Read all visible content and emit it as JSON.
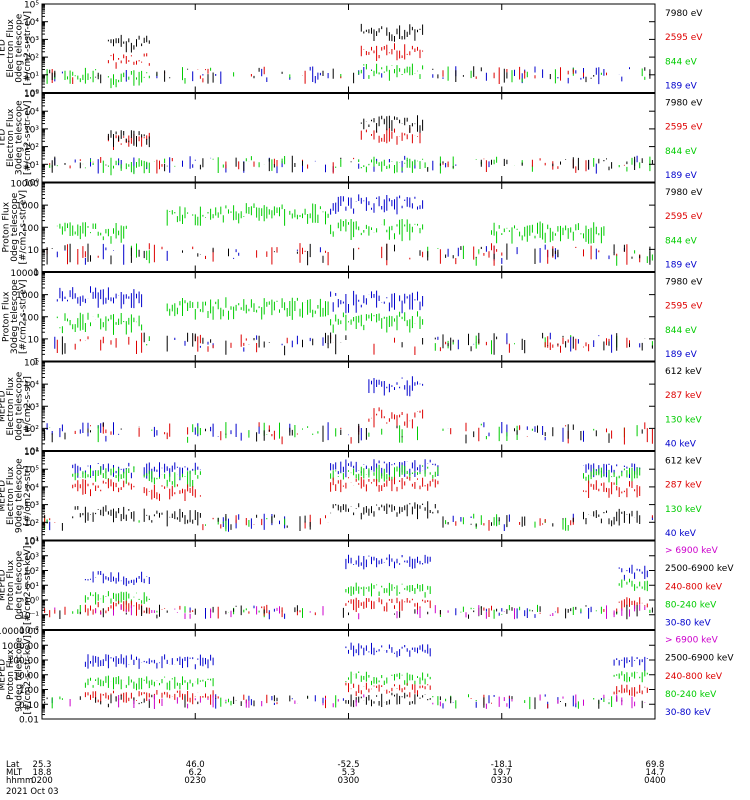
{
  "chart_data": [
    {
      "type": "line",
      "ylabel": [
        "TED",
        "Electron Flux",
        "0deg telescope",
        "[#/cm2-s-str-eV]"
      ],
      "y_scale": "log",
      "ylim": [
        1,
        100000
      ],
      "yticks": [
        "10⁰",
        "10¹",
        "10²",
        "10³",
        "10⁴",
        "10⁵"
      ],
      "legend": [
        {
          "label": "7980 eV",
          "color": "#000000"
        },
        {
          "label": "2595 eV",
          "color": "#dd0000"
        },
        {
          "label": "844 eV",
          "color": "#00cc00"
        },
        {
          "label": "189 eV",
          "color": "#0000cc"
        }
      ],
      "bursts": [
        {
          "x": [
            9,
            15
          ],
          "v": [
            600,
            70,
            6,
            0
          ],
          "color": "#dd0000"
        },
        {
          "x": [
            44,
            53
          ],
          "v": [
            2500,
            200,
            15,
            0
          ],
          "color": "#dd0000"
        },
        {
          "x": [
            3,
            8
          ],
          "v": [
            0,
            0,
            8,
            0
          ],
          "color": "#000000"
        }
      ]
    },
    {
      "type": "line",
      "ylabel": [
        "TED",
        "Electron Flux",
        "30deg telescope",
        "[#/cm2-s-str-eV]"
      ],
      "y_scale": "log",
      "ylim": [
        1,
        100000
      ],
      "yticks": [
        "10⁰",
        "10¹",
        "10²",
        "10³",
        "10⁴",
        "10⁵"
      ],
      "legend": [
        {
          "label": "7980 eV",
          "color": "#000000"
        },
        {
          "label": "2595 eV",
          "color": "#dd0000"
        },
        {
          "label": "844 eV",
          "color": "#00cc00"
        },
        {
          "label": "189 eV",
          "color": "#0000cc"
        }
      ],
      "bursts": [
        {
          "x": [
            9,
            15
          ],
          "v": [
            300,
            200,
            8,
            0
          ],
          "color": "#dd0000"
        },
        {
          "x": [
            44,
            53
          ],
          "v": [
            2000,
            400,
            10,
            0
          ],
          "color": "#dd0000"
        }
      ]
    },
    {
      "type": "line",
      "ylabel": [
        "Proton Flux",
        "0deg telescope",
        "[#/cm2-s-str-eV]"
      ],
      "y_scale": "log",
      "ylim": [
        1,
        10000
      ],
      "yticks": [
        "1",
        "10",
        "100",
        "1000",
        "10000"
      ],
      "legend": [
        {
          "label": "7980 eV",
          "color": "#000000"
        },
        {
          "label": "2595 eV",
          "color": "#dd0000"
        },
        {
          "label": "844 eV",
          "color": "#00cc00"
        },
        {
          "label": "189 eV",
          "color": "#0000cc"
        }
      ],
      "bursts": [
        {
          "x": [
            2,
            12
          ],
          "v": [
            0,
            0,
            60,
            0
          ],
          "color": "#00cc00"
        },
        {
          "x": [
            17,
            40
          ],
          "v": [
            0,
            0,
            400,
            0
          ],
          "color": "#00cc00"
        },
        {
          "x": [
            40,
            53
          ],
          "v": [
            0,
            0,
            80,
            1000
          ],
          "color": "#00cc00"
        },
        {
          "x": [
            62,
            78
          ],
          "v": [
            0,
            0,
            60,
            0
          ],
          "color": "#00cc00"
        }
      ]
    },
    {
      "type": "line",
      "ylabel": [
        "Proton Flux",
        "30deg telescope",
        "[#/cm2-s-str-eV]"
      ],
      "y_scale": "log",
      "ylim": [
        1,
        10000
      ],
      "yticks": [
        "1",
        "10",
        "100",
        "1000",
        "10000"
      ],
      "legend": [
        {
          "label": "7980 eV",
          "color": "#000000"
        },
        {
          "label": "2595 eV",
          "color": "#dd0000"
        },
        {
          "label": "844 eV",
          "color": "#00cc00"
        },
        {
          "label": "189 eV",
          "color": "#0000cc"
        }
      ],
      "bursts": [
        {
          "x": [
            2,
            14
          ],
          "v": [
            0,
            0,
            50,
            800
          ],
          "color": "#00cc00"
        },
        {
          "x": [
            17,
            40
          ],
          "v": [
            0,
            0,
            250,
            0
          ],
          "color": "#00cc00"
        },
        {
          "x": [
            40,
            53
          ],
          "v": [
            0,
            0,
            60,
            500
          ],
          "color": "#00cc00"
        }
      ]
    },
    {
      "type": "line",
      "ylabel": [
        "MEPED",
        "Electron Flux",
        "0deg telescope",
        "[#/cm2-s-str]"
      ],
      "y_scale": "log",
      "ylim": [
        10,
        100000
      ],
      "yticks": [
        "10¹",
        "10²",
        "10³",
        "10⁴",
        "10⁵"
      ],
      "legend": [
        {
          "label": "612 keV",
          "color": "#000000"
        },
        {
          "label": "287 keV",
          "color": "#dd0000"
        },
        {
          "label": "130 keV",
          "color": "#00cc00"
        },
        {
          "label": "40 keV",
          "color": "#0000cc"
        }
      ],
      "bursts": [
        {
          "x": [
            45,
            53
          ],
          "v": [
            0,
            300,
            0,
            8000
          ],
          "color": "#0000cc"
        }
      ]
    },
    {
      "type": "line",
      "ylabel": [
        "MEPED",
        "Electron Flux",
        "90deg telescope",
        "[#/cm2-s-str]"
      ],
      "y_scale": "log",
      "ylim": [
        10,
        1000000
      ],
      "yticks": [
        "10¹",
        "10²",
        "10³",
        "10⁴",
        "10⁵",
        "10⁶"
      ],
      "legend": [
        {
          "label": "612 keV",
          "color": "#000000"
        },
        {
          "label": "287 keV",
          "color": "#dd0000"
        },
        {
          "label": "130 keV",
          "color": "#00cc00"
        },
        {
          "label": "40 keV",
          "color": "#0000cc"
        }
      ],
      "bursts": [
        {
          "x": [
            4,
            13
          ],
          "v": [
            300,
            10000,
            50000,
            100000
          ],
          "color": "#0000cc"
        },
        {
          "x": [
            14,
            22
          ],
          "v": [
            200,
            5000,
            30000,
            80000
          ],
          "color": "#0000cc"
        },
        {
          "x": [
            40,
            55
          ],
          "v": [
            500,
            15000,
            60000,
            120000
          ],
          "color": "#0000cc"
        },
        {
          "x": [
            75,
            83
          ],
          "v": [
            200,
            8000,
            40000,
            100000
          ],
          "color": "#0000cc"
        }
      ]
    },
    {
      "type": "line",
      "ylabel": [
        "MEPED",
        "Proton Flux",
        "0deg telescope",
        "[#/cm2-s-str-keV]"
      ],
      "y_scale": "log",
      "ylim": [
        0.01,
        10000
      ],
      "yticks": [
        "10⁻²",
        "10⁻¹",
        "10⁰",
        "10¹",
        "10²",
        "10³",
        "10⁴"
      ],
      "legend": [
        {
          "label": "> 6900 keV",
          "color": "#cc00cc"
        },
        {
          "label": "2500-6900 keV",
          "color": "#000000"
        },
        {
          "label": "240-800 keV",
          "color": "#dd0000"
        },
        {
          "label": "80-240 keV",
          "color": "#00cc00"
        },
        {
          "label": "30-80 keV",
          "color": "#0000cc"
        }
      ],
      "bursts": [
        {
          "x": [
            6,
            15
          ],
          "v": [
            0,
            0,
            0.3,
            1.5,
            30
          ],
          "color": "#0000cc"
        },
        {
          "x": [
            42,
            54
          ],
          "v": [
            0,
            0,
            0.5,
            5,
            400
          ],
          "color": "#0000cc"
        },
        {
          "x": [
            80,
            84
          ],
          "v": [
            0,
            0,
            0.6,
            10,
            80
          ],
          "color": "#0000cc"
        }
      ]
    },
    {
      "type": "line",
      "ylabel": [
        "MEPED",
        "Proton Flux",
        "90deg telescope",
        "[#/cm2-s-str-keV]"
      ],
      "y_scale": "log",
      "ylim": [
        0.01,
        10000
      ],
      "yticks": [
        "0.01",
        "0.10",
        "1.00",
        "10.00",
        "100.00",
        "1000.00",
        "10000.00"
      ],
      "legend": [
        {
          "label": "> 6900 keV",
          "color": "#cc00cc"
        },
        {
          "label": "2500-6900 keV",
          "color": "#000000"
        },
        {
          "label": "240-800 keV",
          "color": "#dd0000"
        },
        {
          "label": "80-240 keV",
          "color": "#00cc00"
        },
        {
          "label": "30-80 keV",
          "color": "#0000cc"
        }
      ],
      "bursts": [
        {
          "x": [
            6,
            24
          ],
          "v": [
            0,
            0,
            0.3,
            3,
            80
          ],
          "color": "#0000cc"
        },
        {
          "x": [
            42,
            54
          ],
          "v": [
            0,
            0.2,
            1,
            6,
            500
          ],
          "color": "#0000cc"
        },
        {
          "x": [
            79,
            84
          ],
          "v": [
            0,
            0,
            0.8,
            8,
            60
          ],
          "color": "#0000cc"
        }
      ]
    }
  ],
  "x_axis": {
    "row_labels": [
      "Lat",
      "MLT",
      "hhmm"
    ],
    "ticks": [
      {
        "lat": "25.3",
        "mlt": "18.8",
        "hhmm": "0200"
      },
      {
        "lat": "46.0",
        "mlt": "6.2",
        "hhmm": "0230"
      },
      {
        "lat": "-52.5",
        "mlt": "5.3",
        "hhmm": "0300"
      },
      {
        "lat": "-18.1",
        "mlt": "19.7",
        "hhmm": "0330"
      },
      {
        "lat": "69.8",
        "mlt": "14.7",
        "hhmm": "0400"
      }
    ],
    "date": "2021 Oct 03"
  }
}
